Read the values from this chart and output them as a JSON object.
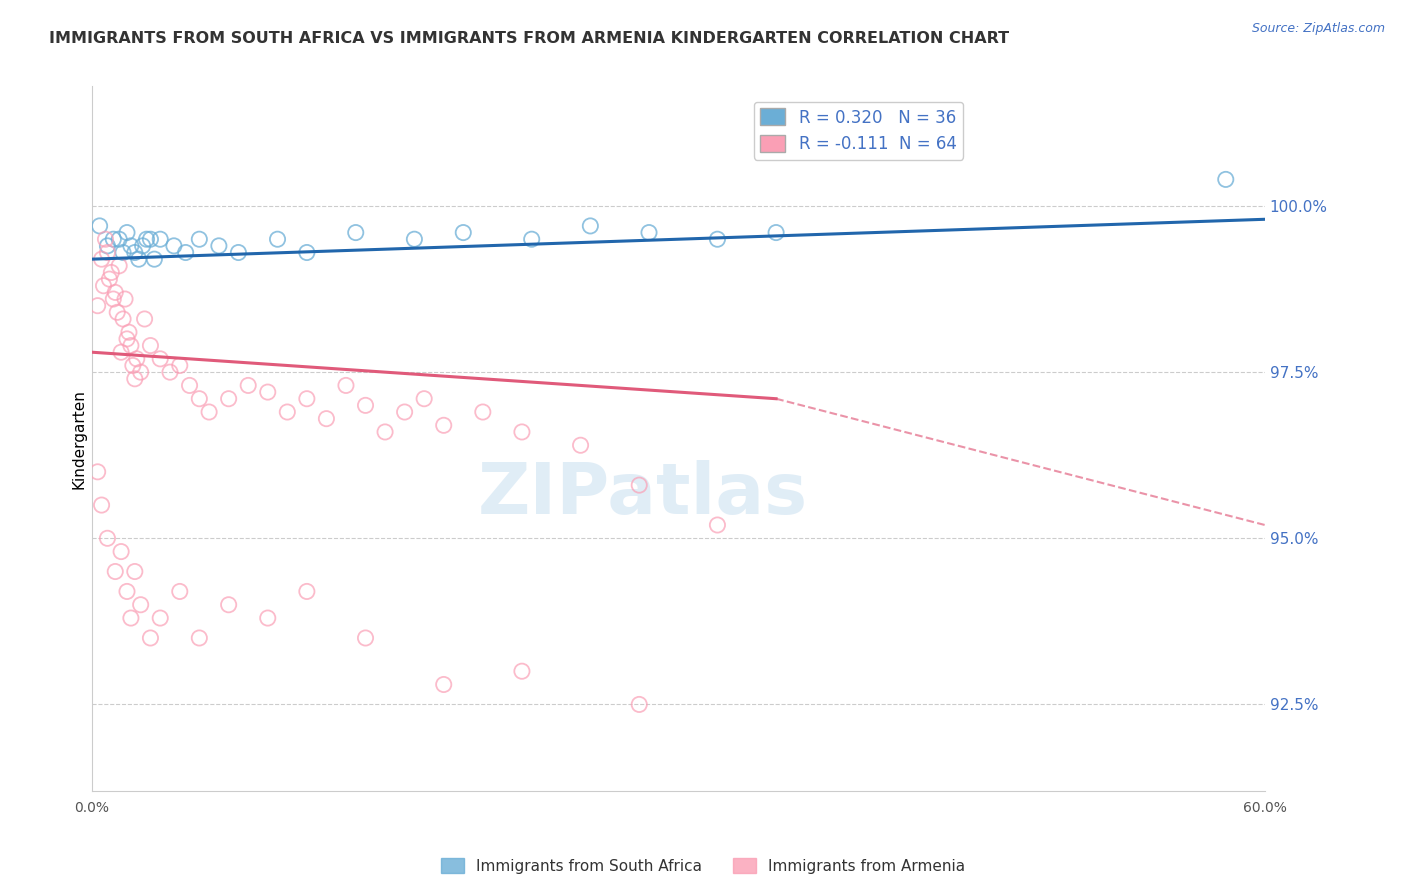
{
  "title": "IMMIGRANTS FROM SOUTH AFRICA VS IMMIGRANTS FROM ARMENIA KINDERGARTEN CORRELATION CHART",
  "source": "Source: ZipAtlas.com",
  "ylabel": "Kindergarten",
  "y_ticks": [
    92.5,
    95.0,
    97.5,
    100.0
  ],
  "y_tick_labels": [
    "92.5%",
    "95.0%",
    "97.5%",
    "100.0%"
  ],
  "x_range": [
    0.0,
    60.0
  ],
  "y_range": [
    91.2,
    101.8
  ],
  "legend_label1": "Immigrants from South Africa",
  "legend_label2": "Immigrants from Armenia",
  "r1": 0.32,
  "n1": 36,
  "r2": -0.111,
  "n2": 64,
  "color_sa": "#6baed6",
  "color_arm": "#fa9fb5",
  "trendline_sa_color": "#2166ac",
  "trendline_arm_color": "#e05a7a",
  "watermark": "ZIPatlas",
  "south_africa_x": [
    0.4,
    0.8,
    1.1,
    1.4,
    1.6,
    1.8,
    2.0,
    2.2,
    2.4,
    2.6,
    2.8,
    3.0,
    3.2,
    3.5,
    4.2,
    4.8,
    5.5,
    6.5,
    7.5,
    9.5,
    11.0,
    13.5,
    16.5,
    19.0,
    22.5,
    25.5,
    28.5,
    32.0,
    35.0,
    58.0
  ],
  "south_africa_y": [
    99.7,
    99.4,
    99.5,
    99.5,
    99.3,
    99.6,
    99.4,
    99.3,
    99.2,
    99.4,
    99.5,
    99.5,
    99.2,
    99.5,
    99.4,
    99.3,
    99.5,
    99.4,
    99.3,
    99.5,
    99.3,
    99.6,
    99.5,
    99.6,
    99.5,
    99.7,
    99.6,
    99.5,
    99.6,
    100.4
  ],
  "armenia_x": [
    0.3,
    0.5,
    0.6,
    0.7,
    0.8,
    0.9,
    1.0,
    1.1,
    1.2,
    1.3,
    1.4,
    1.5,
    1.6,
    1.7,
    1.8,
    1.9,
    2.0,
    2.1,
    2.2,
    2.3,
    2.5,
    2.7,
    3.0,
    3.5,
    4.0,
    4.5,
    5.0,
    5.5,
    6.0,
    7.0,
    8.0,
    9.0,
    10.0,
    11.0,
    12.0,
    13.0,
    14.0,
    15.0,
    16.0,
    17.0,
    18.0,
    20.0,
    22.0,
    25.0,
    28.0,
    32.0
  ],
  "armenia_y": [
    98.5,
    99.2,
    98.8,
    99.5,
    99.3,
    98.9,
    99.0,
    98.6,
    98.7,
    98.4,
    99.1,
    97.8,
    98.3,
    98.6,
    98.0,
    98.1,
    97.9,
    97.6,
    97.4,
    97.7,
    97.5,
    98.3,
    97.9,
    97.7,
    97.5,
    97.6,
    97.3,
    97.1,
    96.9,
    97.1,
    97.3,
    97.2,
    96.9,
    97.1,
    96.8,
    97.3,
    97.0,
    96.6,
    96.9,
    97.1,
    96.7,
    96.9,
    96.6,
    96.4,
    95.8,
    95.2
  ],
  "armenia_low_x": [
    0.3,
    0.5,
    0.8,
    1.2,
    1.5,
    1.8,
    2.0,
    2.2,
    2.5,
    3.0,
    3.5,
    4.5,
    5.5,
    7.0,
    9.0,
    11.0,
    14.0,
    18.0,
    22.0,
    28.0
  ],
  "armenia_low_y": [
    96.0,
    95.5,
    95.0,
    94.5,
    94.8,
    94.2,
    93.8,
    94.5,
    94.0,
    93.5,
    93.8,
    94.2,
    93.5,
    94.0,
    93.8,
    94.2,
    93.5,
    92.8,
    93.0,
    92.5
  ],
  "trendline_sa_x0": 0.0,
  "trendline_sa_y0": 99.2,
  "trendline_sa_x1": 60.0,
  "trendline_sa_y1": 99.8,
  "trendline_arm_x0": 0.0,
  "trendline_arm_y0": 97.8,
  "trendline_arm_x1_solid": 35.0,
  "trendline_arm_y1_solid": 97.1,
  "trendline_arm_x1_dash": 60.0,
  "trendline_arm_y1_dash": 95.2
}
